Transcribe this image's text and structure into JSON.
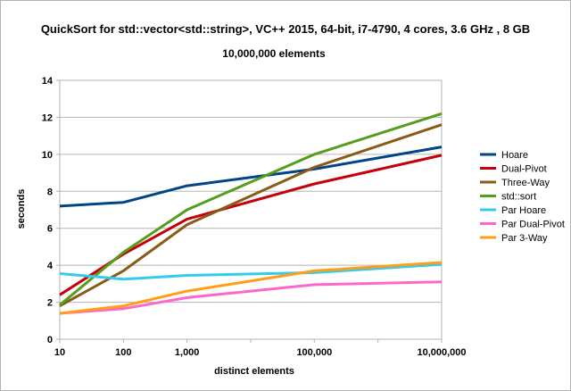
{
  "chart_data": {
    "type": "line",
    "title": "QuickSort for std::vector<std::string>, VC++ 2015, 64-bit, i7-4790, 4 cores, 3.6 GHz , 8 GB",
    "subtitle": "10,000,000 elements",
    "xlabel": "distinct elements",
    "ylabel": "seconds",
    "x_scale": "log",
    "x": [
      10,
      100,
      1000,
      100000,
      10000000
    ],
    "x_tick_labels": [
      "10",
      "100",
      "1,000",
      "100,000",
      "10,000,000"
    ],
    "ylim": [
      0,
      14
    ],
    "y_ticks": [
      0,
      2,
      4,
      6,
      8,
      10,
      12,
      14
    ],
    "grid": "horizontal",
    "legend_position": "right",
    "series": [
      {
        "name": "Hoare",
        "color": "#004586",
        "values": [
          7.2,
          7.4,
          8.3,
          9.2,
          10.4
        ]
      },
      {
        "name": "Dual-Pivot",
        "color": "#c5000b",
        "values": [
          2.4,
          4.6,
          6.5,
          8.4,
          9.95
        ]
      },
      {
        "name": "Three-Way",
        "color": "#8b5a16",
        "values": [
          1.8,
          3.7,
          6.2,
          9.3,
          11.6
        ]
      },
      {
        "name": "std::sort",
        "color": "#579d1c",
        "values": [
          1.85,
          4.7,
          7.0,
          10.0,
          12.2
        ]
      },
      {
        "name": "Par Hoare",
        "color": "#33ccee",
        "values": [
          3.55,
          3.25,
          3.45,
          3.6,
          4.05
        ]
      },
      {
        "name": "Par Dual-Pivot",
        "color": "#ff66cc",
        "values": [
          1.4,
          1.65,
          2.25,
          2.95,
          3.1
        ]
      },
      {
        "name": "Par 3-Way",
        "color": "#ff9e17",
        "values": [
          1.4,
          1.8,
          2.6,
          3.7,
          4.15
        ]
      }
    ]
  }
}
